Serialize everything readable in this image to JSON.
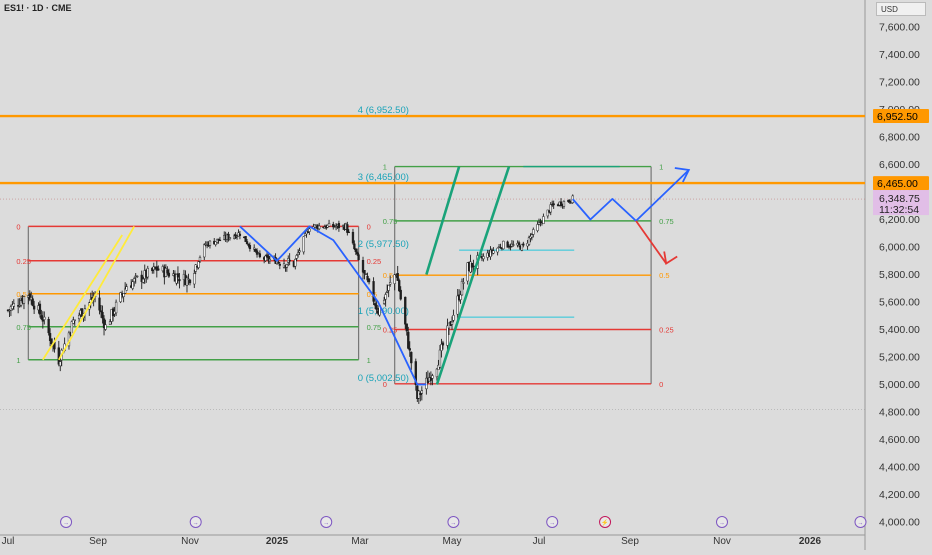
{
  "header": {
    "symbol": "ES1! · 1D · CME",
    "currency": "USD"
  },
  "colors": {
    "background": "#dcdcdc",
    "price_line": "#ff9800",
    "up_candle": "#1e1e1e",
    "fib_red": "#e53935",
    "fib_orange": "#ff9800",
    "fib_green": "#43a047",
    "fib_box": "#777777",
    "projection_blue": "#2962ff",
    "projection_red": "#e53935",
    "trend_yellow": "#ffeb3b",
    "trend_teal": "#1aa37a",
    "level_cyan": "#26c6da",
    "last_price_bg": "#e1bee7"
  },
  "chart_data": {
    "type": "candlestick",
    "title": "",
    "y_axis": {
      "ticks": [
        "7,600.00",
        "7,400.00",
        "7,200.00",
        "7,000.00",
        "6,800.00",
        "6,600.00",
        "6,400.00",
        "6,200.00",
        "6,000.00",
        "5,800.00",
        "5,600.00",
        "5,400.00",
        "5,200.00",
        "5,000.00",
        "4,800.00",
        "4,600.00",
        "4,400.00",
        "4,200.00",
        "4,000.00"
      ],
      "range": [
        4000,
        7800
      ]
    },
    "x_axis": {
      "ticks": [
        "Jul",
        "Sep",
        "Nov",
        "2025",
        "Mar",
        "May",
        "Jul",
        "Sep",
        "Nov",
        "2026"
      ],
      "range": [
        "2024-07-01",
        "2026-02-15"
      ]
    },
    "price_levels": [
      {
        "label": "6,952.50",
        "value": 6952.5
      },
      {
        "label": "6,465.00",
        "value": 6465
      }
    ],
    "last_price": {
      "label": "6,348.75",
      "countdown": "11:32:54",
      "value": 6348.75
    },
    "price_series_approx": [
      {
        "date": "2024-07-01",
        "close": 5540
      },
      {
        "date": "2024-07-15",
        "close": 5660
      },
      {
        "date": "2024-07-25",
        "close": 5480
      },
      {
        "date": "2024-08-05",
        "close": 5180
      },
      {
        "date": "2024-08-15",
        "close": 5460
      },
      {
        "date": "2024-08-30",
        "close": 5640
      },
      {
        "date": "2024-09-06",
        "close": 5420
      },
      {
        "date": "2024-09-20",
        "close": 5720
      },
      {
        "date": "2024-10-10",
        "close": 5840
      },
      {
        "date": "2024-10-31",
        "close": 5760
      },
      {
        "date": "2024-11-12",
        "close": 6020
      },
      {
        "date": "2024-12-06",
        "close": 6100
      },
      {
        "date": "2024-12-20",
        "close": 5920
      },
      {
        "date": "2025-01-13",
        "close": 5880
      },
      {
        "date": "2025-01-24",
        "close": 6150
      },
      {
        "date": "2025-02-19",
        "close": 6150
      },
      {
        "date": "2025-03-13",
        "close": 5540
      },
      {
        "date": "2025-03-25",
        "close": 5820
      },
      {
        "date": "2025-04-08",
        "close": 4900
      },
      {
        "date": "2025-04-21",
        "close": 5150
      },
      {
        "date": "2025-05-12",
        "close": 5850
      },
      {
        "date": "2025-06-06",
        "close": 6020
      },
      {
        "date": "2025-06-20",
        "close": 6000
      },
      {
        "date": "2025-07-10",
        "close": 6300
      },
      {
        "date": "2025-07-24",
        "close": 6348.75
      }
    ],
    "fib_left": {
      "start": "2024-07-15",
      "end": "2025-02-28",
      "levels": [
        {
          "label": "0",
          "value": 6150,
          "color": "#e53935"
        },
        {
          "label": "0.25",
          "value": 5900,
          "color": "#e53935"
        },
        {
          "label": "0.5",
          "value": 5660,
          "color": "#ff9800"
        },
        {
          "label": "0.75",
          "value": 5420,
          "color": "#43a047"
        },
        {
          "label": "1",
          "value": 5180,
          "color": "#43a047"
        }
      ]
    },
    "fib_right": {
      "start": "2025-03-24",
      "end": "2025-09-15",
      "levels": [
        {
          "label": "1",
          "value": 6585,
          "color": "#43a047"
        },
        {
          "label": "0.75",
          "value": 6190,
          "color": "#43a047"
        },
        {
          "label": "0.5",
          "value": 5795,
          "color": "#ff9800"
        },
        {
          "label": "0.25",
          "value": 5400,
          "color": "#e53935"
        },
        {
          "label": "0",
          "value": 5005,
          "color": "#e53935"
        }
      ]
    },
    "fib_extension_labels": [
      {
        "label": "4 (6,952.50)",
        "value": 6952.5
      },
      {
        "label": "3 (6,465.00)",
        "value": 6465
      },
      {
        "label": "2 (5,977.50)",
        "value": 5977.5
      },
      {
        "label": "1 (5,490.00)",
        "value": 5490
      },
      {
        "label": "0 (5,002.50)",
        "value": 5002.5
      }
    ],
    "cyan_levels": [
      5977.5,
      5490
    ],
    "projection_path": [
      {
        "date": "2025-07-24",
        "value": 6348
      },
      {
        "date": "2025-08-05",
        "value": 6200
      },
      {
        "date": "2025-08-20",
        "value": 6350
      },
      {
        "date": "2025-09-05",
        "value": 6190
      },
      {
        "date": "2025-10-10",
        "value": 6560
      }
    ],
    "projection_down": [
      {
        "date": "2025-09-05",
        "value": 6190
      },
      {
        "date": "2025-09-25",
        "value": 5880
      }
    ],
    "blue_swing_path": [
      {
        "date": "2024-12-06",
        "value": 6150
      },
      {
        "date": "2025-01-01",
        "value": 5900
      },
      {
        "date": "2025-01-24",
        "value": 6150
      },
      {
        "date": "2025-02-10",
        "value": 6050
      },
      {
        "date": "2025-03-13",
        "value": 5600
      },
      {
        "date": "2025-04-08",
        "value": 5000
      },
      {
        "date": "2025-04-14",
        "value": 5000
      }
    ],
    "trend_yellow": [
      {
        "date": "2024-08-05",
        "value": 5180
      },
      {
        "date": "2024-09-25",
        "value": 6150
      }
    ],
    "trend_teal": [
      {
        "date": "2025-04-21",
        "value": 5000
      },
      {
        "date": "2025-06-10",
        "value": 6585
      }
    ],
    "trend_teal_upper": [
      {
        "date": "2025-04-14",
        "value": 5800
      },
      {
        "date": "2025-05-06",
        "value": 6585
      }
    ],
    "event_icons": [
      {
        "date": "2024-08-10",
        "icon": "earnings-icon"
      },
      {
        "date": "2024-11-05",
        "icon": "earnings-icon"
      },
      {
        "date": "2025-02-05",
        "icon": "earnings-icon"
      },
      {
        "date": "2025-05-02",
        "icon": "earnings-icon"
      },
      {
        "date": "2025-07-10",
        "icon": "earnings-icon"
      },
      {
        "date": "2025-08-15",
        "icon": "earnings-icon"
      },
      {
        "date": "2025-11-01",
        "icon": "earnings-icon"
      },
      {
        "date": "2026-02-05",
        "icon": "earnings-icon"
      }
    ]
  }
}
